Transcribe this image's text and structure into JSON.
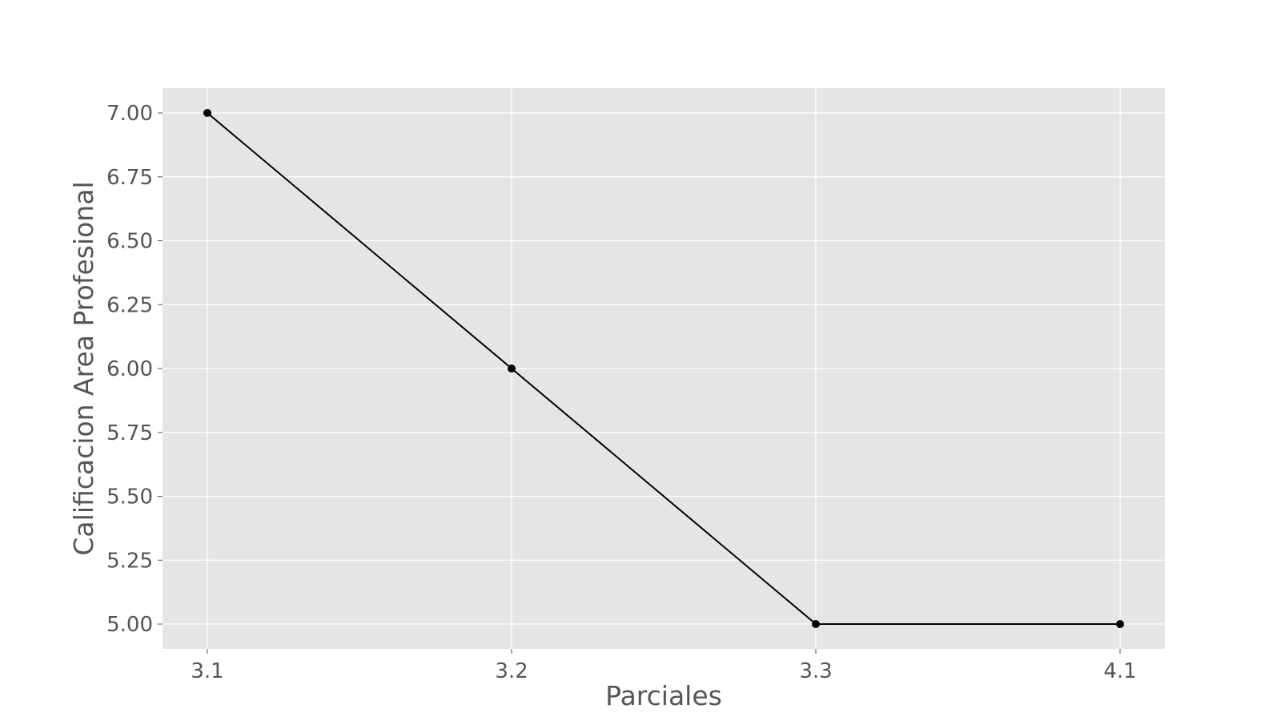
{
  "chart_data": {
    "type": "line",
    "title": "",
    "xlabel": "Parciales",
    "ylabel": "Calificacion Area Profesional",
    "categories": [
      "3.1",
      "3.2",
      "3.3",
      "4.1"
    ],
    "series": [
      {
        "values": [
          7.0,
          6.0,
          5.0,
          5.0
        ]
      }
    ],
    "ylim": [
      4.9,
      7.1
    ],
    "yticks": [
      "5.00",
      "5.25",
      "5.50",
      "5.75",
      "6.00",
      "6.25",
      "6.50",
      "6.75",
      "7.00"
    ],
    "grid": true,
    "style": {
      "background": "#e5e5e5",
      "grid_color": "#ffffff",
      "line_color": "#000000",
      "text_color": "#555555"
    }
  }
}
